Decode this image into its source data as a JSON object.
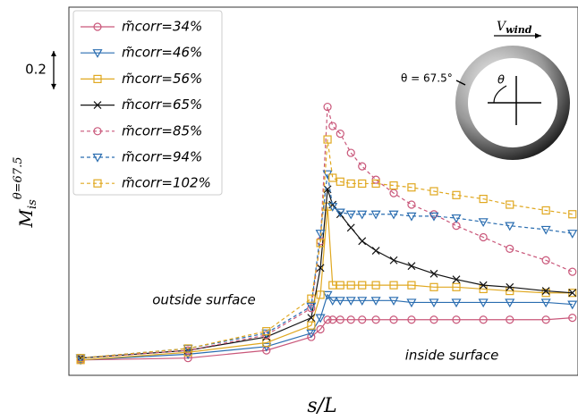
{
  "chart_data": {
    "type": "line",
    "xlabel": "s/L",
    "ylabel": {
      "base": "M",
      "sub": "is",
      "sup": "θ=67.5"
    },
    "scale_bar": 0.2,
    "annotations": [
      "outside surface",
      "inside surface"
    ],
    "inset": {
      "wind": {
        "base": "V",
        "sub": "wind"
      },
      "angle": "θ = 67.5°",
      "theta": "θ"
    },
    "xlim": [
      0,
      1
    ],
    "ylim": [
      0,
      1.92
    ],
    "x": [
      0.023,
      0.234,
      0.388,
      0.476,
      0.494,
      0.508,
      0.518,
      0.533,
      0.554,
      0.576,
      0.603,
      0.638,
      0.673,
      0.717,
      0.761,
      0.814,
      0.866,
      0.937,
      0.989
    ],
    "series": [
      {
        "name": "m̃corr=34%",
        "color": "#c9577a",
        "marker": "circle",
        "dash": false,
        "values": [
          0.08,
          0.09,
          0.13,
          0.2,
          0.24,
          0.29,
          0.29,
          0.29,
          0.29,
          0.29,
          0.29,
          0.29,
          0.29,
          0.29,
          0.29,
          0.29,
          0.29,
          0.29,
          0.3
        ]
      },
      {
        "name": "m̃corr=46%",
        "color": "#2a6db0",
        "marker": "triangle",
        "dash": false,
        "values": [
          0.08,
          0.11,
          0.15,
          0.22,
          0.3,
          0.42,
          0.39,
          0.39,
          0.39,
          0.39,
          0.39,
          0.39,
          0.38,
          0.38,
          0.38,
          0.38,
          0.38,
          0.38,
          0.37
        ]
      },
      {
        "name": "m̃corr=56%",
        "color": "#e0a820",
        "marker": "square",
        "dash": false,
        "values": [
          0.08,
          0.12,
          0.17,
          0.26,
          0.42,
          0.88,
          0.47,
          0.47,
          0.47,
          0.47,
          0.47,
          0.47,
          0.47,
          0.46,
          0.46,
          0.45,
          0.44,
          0.43,
          0.43
        ]
      },
      {
        "name": "m̃corr=65%",
        "color": "#111111",
        "marker": "x",
        "dash": false,
        "values": [
          0.09,
          0.13,
          0.2,
          0.3,
          0.56,
          0.97,
          0.89,
          0.84,
          0.77,
          0.7,
          0.65,
          0.6,
          0.57,
          0.53,
          0.5,
          0.47,
          0.46,
          0.44,
          0.43
        ]
      },
      {
        "name": "m̃corr=85%",
        "color": "#c9577a",
        "marker": "circle",
        "dash": true,
        "values": [
          0.09,
          0.13,
          0.21,
          0.35,
          0.7,
          1.4,
          1.3,
          1.26,
          1.16,
          1.09,
          1.02,
          0.95,
          0.89,
          0.84,
          0.78,
          0.72,
          0.66,
          0.6,
          0.54
        ]
      },
      {
        "name": "m̃corr=94%",
        "color": "#2a6db0",
        "marker": "triangle",
        "dash": true,
        "values": [
          0.09,
          0.14,
          0.22,
          0.36,
          0.74,
          1.05,
          0.88,
          0.85,
          0.84,
          0.84,
          0.84,
          0.84,
          0.83,
          0.83,
          0.82,
          0.8,
          0.78,
          0.76,
          0.74
        ]
      },
      {
        "name": "m̃corr=102%",
        "color": "#e0a820",
        "marker": "square",
        "dash": true,
        "values": [
          0.09,
          0.14,
          0.23,
          0.4,
          0.69,
          1.23,
          1.03,
          1.01,
          1.0,
          1.0,
          1.0,
          0.99,
          0.98,
          0.96,
          0.94,
          0.92,
          0.89,
          0.86,
          0.84
        ]
      }
    ]
  }
}
